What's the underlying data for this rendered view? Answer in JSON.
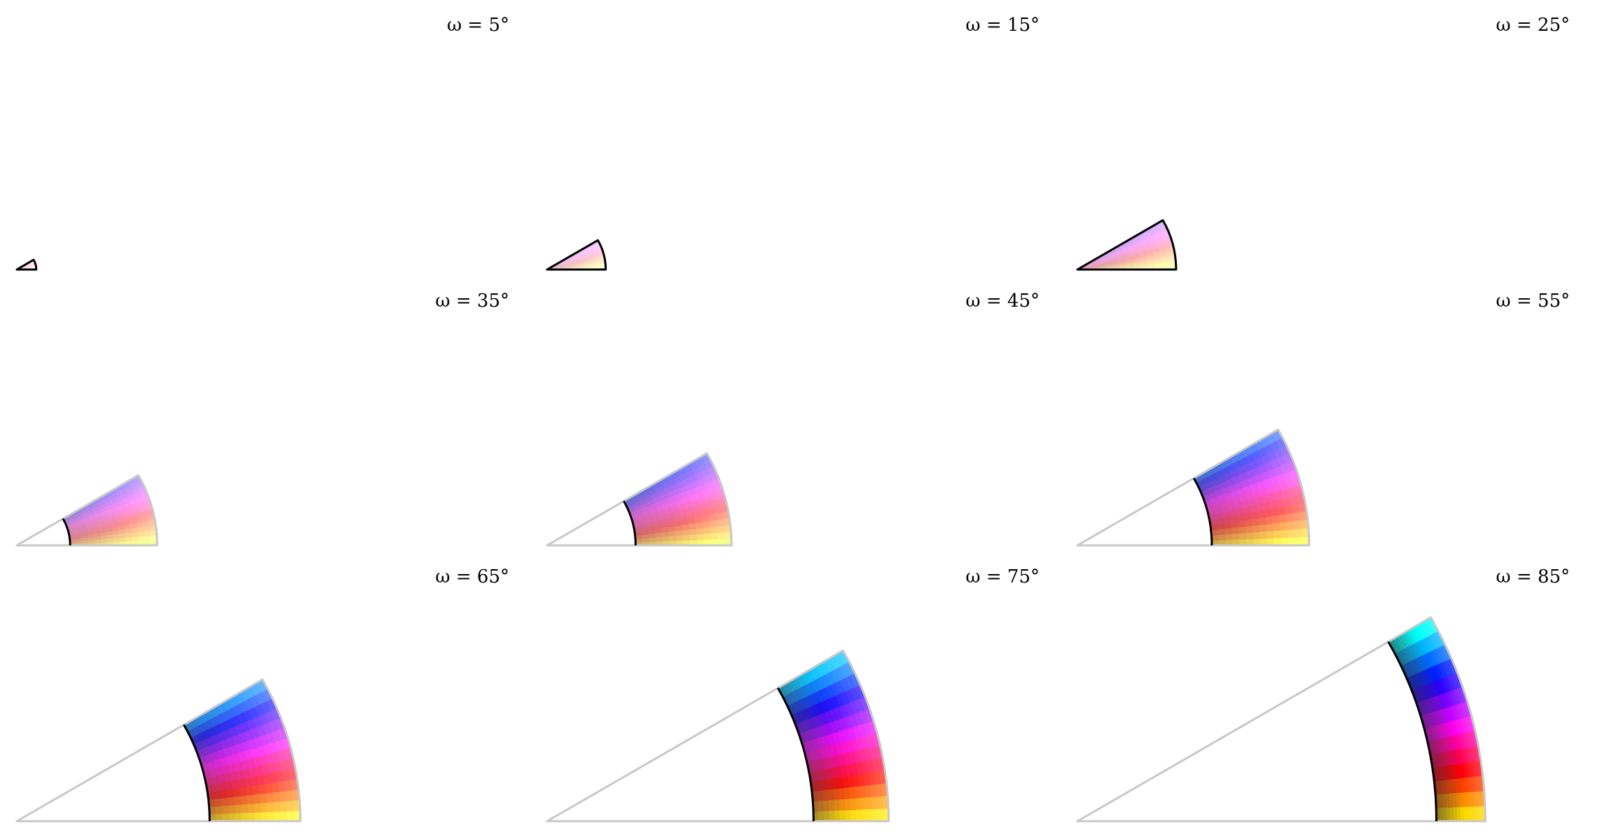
{
  "figure": {
    "panels": [
      {
        "omega_deg": 5,
        "label": "ω = 5°"
      },
      {
        "omega_deg": 15,
        "label": "ω = 15°"
      },
      {
        "omega_deg": 25,
        "label": "ω = 25°"
      },
      {
        "omega_deg": 35,
        "label": "ω = 35°"
      },
      {
        "omega_deg": 45,
        "label": "ω = 45°"
      },
      {
        "omega_deg": 55,
        "label": "ω = 55°"
      },
      {
        "omega_deg": 65,
        "label": "ω = 65°"
      },
      {
        "omega_deg": 75,
        "label": "ω = 75°"
      },
      {
        "omega_deg": 85,
        "label": "ω = 85°"
      }
    ]
  },
  "colors": {
    "inner_boundary": "#000000",
    "outer_boundary": "#c8c8c8",
    "background": "#ffffff"
  }
}
